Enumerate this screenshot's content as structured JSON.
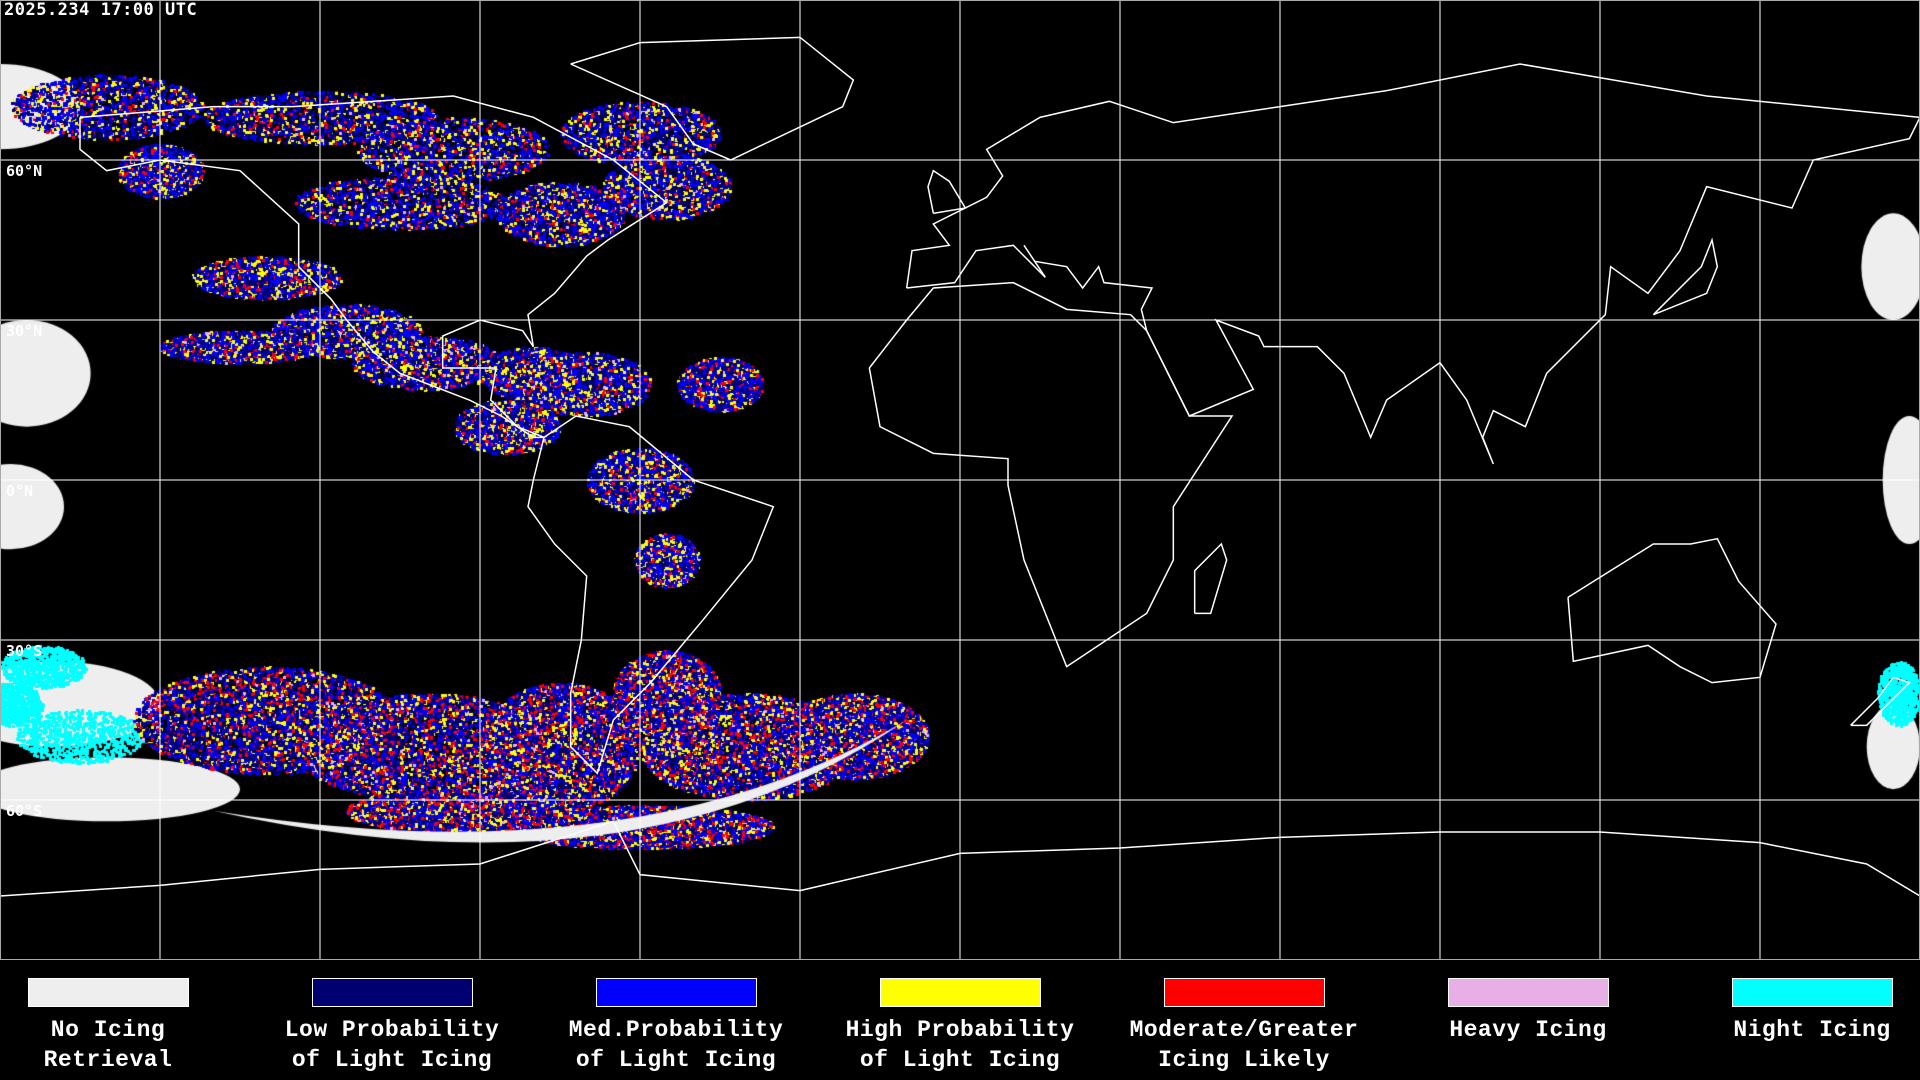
{
  "header": {
    "timestamp": "2025.234 17:00 UTC"
  },
  "map": {
    "projection": "equirectangular",
    "graticule_step_degrees": 30,
    "lat_labels": [
      "60°N",
      "30°N",
      "0°N",
      "30°S",
      "60°S"
    ],
    "background_color": "#000000",
    "coastline_color": "#ffffff"
  },
  "legend": {
    "items": [
      {
        "line1": "No Icing",
        "line2": "Retrieval",
        "color": "#eeeeee"
      },
      {
        "line1": "Low Probability",
        "line2": "of Light Icing",
        "color": "#000070"
      },
      {
        "line1": "Med.Probability",
        "line2": "of Light Icing",
        "color": "#0000ff"
      },
      {
        "line1": "High Probability",
        "line2": "of Light Icing",
        "color": "#ffff00"
      },
      {
        "line1": "Moderate/Greater",
        "line2": "Icing Likely",
        "color": "#ff0000"
      },
      {
        "line1": "Heavy Icing",
        "line2": "",
        "color": "#e8aee6"
      },
      {
        "line1": "Night Icing",
        "line2": "",
        "color": "#00ffff"
      }
    ]
  }
}
